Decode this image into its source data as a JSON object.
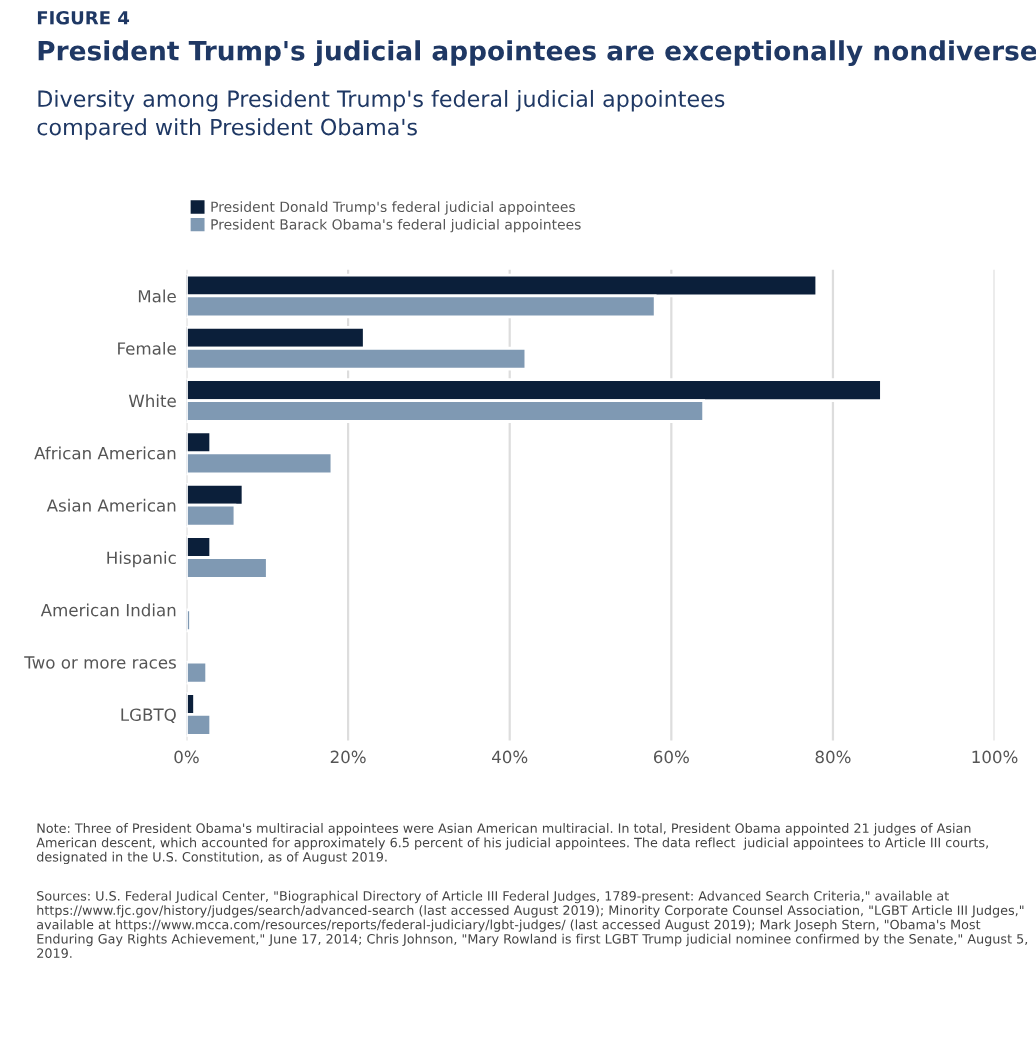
{
  "chart_data": {
    "type": "bar",
    "orientation": "horizontal",
    "title": "President Trump's judicial appointees are exceptionally nondiverse",
    "subtitle": "Diversity among President Trump's federal judicial appointees\ncompared with President Obama's",
    "annotations": [
      "FIGURE 4",
      "Note: Three of President Obama's multiracial appointees were Asian American multiracial. In total, President Obama appointed 21 judges of Asian American descent, which accounted for approximately 6.5 percent of his judicial appointees. The data reflect  judicial appointees to Article III courts, designated in the U.S. Constitution, as of August 2019.",
      "Sources: U.S. Federal Judical Center, \"Biographical Directory of Article III Federal Judges, 1789-present: Advanced Search Criteria,\" available at https://www.fjc.gov/history/judges/search/advanced-search (last accessed August 2019); Minority Corporate Counsel Association, \"LGBT Article III Judges,\" available at https://www.mcca.com/resources/reports/federal-judiciary/lgbt-judges/ (last accessed August 2019); Mark Joseph Stern, \"Obama's Most Enduring Gay Rights Achievement,\" June 17, 2014; Chris Johnson, \"Mary Rowland is first LGBT Trump judicial nominee confirmed by the Senate,\" August 5, 2019."
    ],
    "categories": [
      "Male",
      "Female",
      "White",
      "African American",
      "Asian American",
      "Hispanic",
      "American Indian",
      "Two or more races",
      "LGBTQ"
    ],
    "series": [
      {
        "name": "President Donald Trump's federal judicial appointees",
        "color": "#0b1f3a",
        "values": [
          78,
          22,
          86,
          3,
          7,
          3,
          null,
          null,
          1
        ]
      },
      {
        "name": "President Barack Obama's federal judicial appointees",
        "color": "#7f99b3",
        "values": [
          58,
          42,
          64,
          18,
          6,
          10,
          0.5,
          2.5,
          3
        ]
      }
    ],
    "xlim": [
      0,
      100
    ],
    "xticks": [
      {
        "value": 0,
        "label": "0%"
      },
      {
        "value": 20,
        "label": "20%"
      },
      {
        "value": 40,
        "label": "40%"
      },
      {
        "value": 60,
        "label": "60%"
      },
      {
        "value": 80,
        "label": "80%"
      },
      {
        "value": 100,
        "label": "100%"
      }
    ],
    "grid": "x",
    "legend": "top left"
  }
}
